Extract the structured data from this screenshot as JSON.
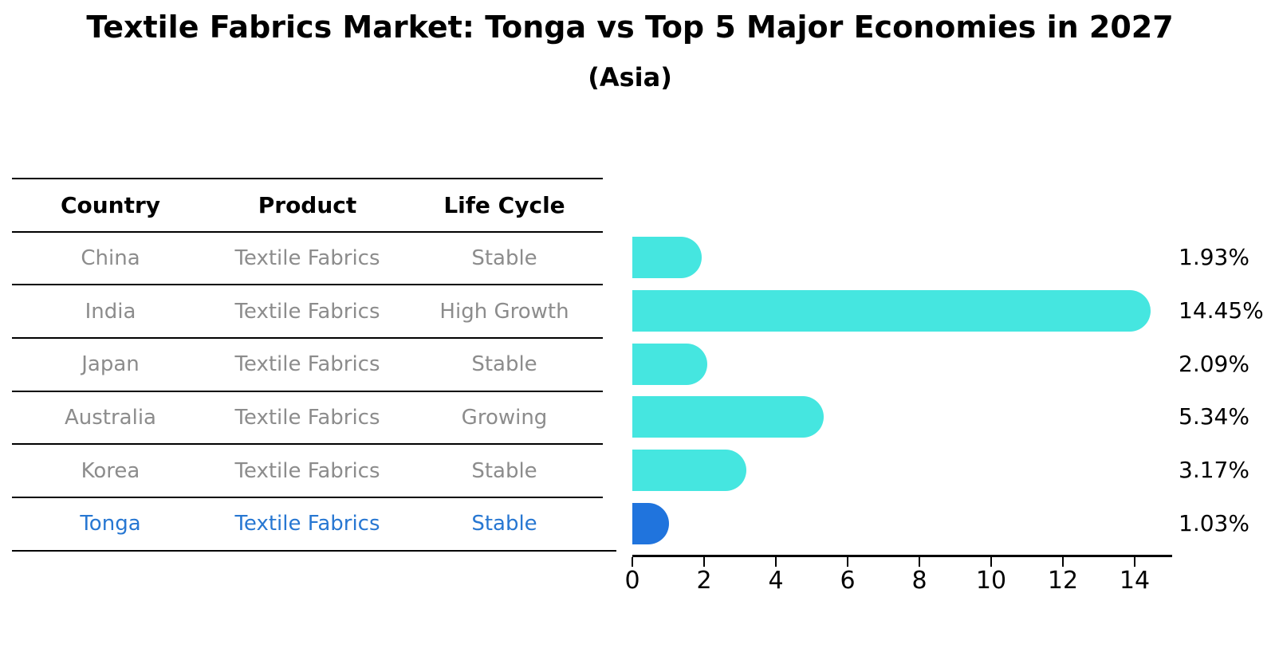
{
  "title": "Textile Fabrics Market: Tonga vs Top 5 Major Economies in 2027",
  "subtitle": "(Asia)",
  "table": {
    "headers": [
      "Country",
      "Product",
      "Life Cycle"
    ],
    "rows": [
      {
        "country": "China",
        "product": "Textile Fabrics",
        "life_cycle": "Stable"
      },
      {
        "country": "India",
        "product": "Textile Fabrics",
        "life_cycle": "High Growth"
      },
      {
        "country": "Japan",
        "product": "Textile Fabrics",
        "life_cycle": "Stable"
      },
      {
        "country": "Australia",
        "product": "Textile Fabrics",
        "life_cycle": "Growing"
      },
      {
        "country": "Korea",
        "product": "Textile Fabrics",
        "life_cycle": "Stable"
      },
      {
        "country": "Tonga",
        "product": "Textile Fabrics",
        "life_cycle": "Stable"
      }
    ],
    "highlight_row": "Tonga"
  },
  "chart_data": {
    "type": "bar",
    "orientation": "horizontal",
    "title": "Textile Fabrics Market: Tonga vs Top 5 Major Economies in 2027",
    "subtitle": "(Asia)",
    "categories": [
      "China",
      "India",
      "Japan",
      "Australia",
      "Korea",
      "Tonga"
    ],
    "values": [
      1.93,
      14.45,
      2.09,
      5.34,
      3.17,
      1.03
    ],
    "value_labels": [
      "1.93%",
      "14.45%",
      "2.09%",
      "5.34%",
      "3.17%",
      "1.03%"
    ],
    "x_ticks": [
      0,
      2,
      4,
      6,
      8,
      10,
      12,
      14
    ],
    "xlim": [
      0,
      15
    ],
    "grid": false,
    "legend": false,
    "highlight_index": 5
  },
  "colors": {
    "bar": "#45E6E0",
    "highlight_bar": "#2074DD",
    "highlight_text": "#2777D2",
    "table_text": "#8C8C8C",
    "axis": "#000000"
  }
}
